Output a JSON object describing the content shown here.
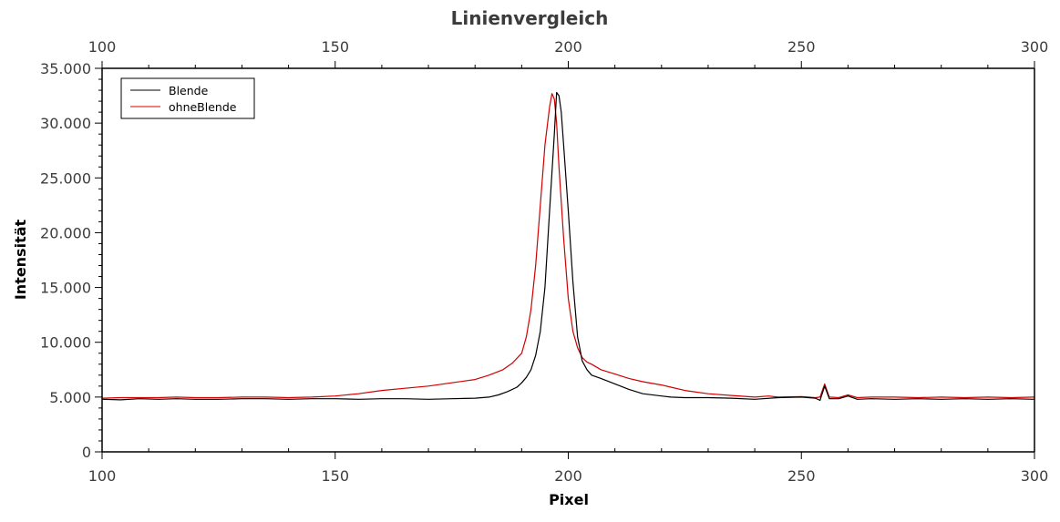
{
  "chart_data": {
    "type": "line",
    "title": "Linienvergleich",
    "xlabel": "Pixel",
    "ylabel": "Intensität",
    "xlim": [
      100,
      300
    ],
    "ylim": [
      0,
      35000
    ],
    "x_ticks": [
      100,
      150,
      200,
      250,
      300
    ],
    "x_tick_labels": [
      "100",
      "150",
      "200",
      "250",
      "300"
    ],
    "x_minor_step": 10,
    "y_ticks": [
      0,
      5000,
      10000,
      15000,
      20000,
      25000,
      30000,
      35000
    ],
    "y_tick_labels": [
      "0",
      "5.000",
      "10.000",
      "15.000",
      "20.000",
      "25.000",
      "30.000",
      "35.000"
    ],
    "y_minor_step": 1000,
    "top_axis_mirrored": true,
    "grid": false,
    "legend_position": "upper-left",
    "series": [
      {
        "name": "Blende",
        "color": "#000000",
        "x": [
          100,
          104,
          108,
          112,
          116,
          120,
          125,
          130,
          135,
          140,
          145,
          150,
          155,
          160,
          165,
          170,
          175,
          180,
          183,
          185,
          187,
          189,
          190,
          191,
          192,
          193,
          194,
          195,
          196,
          197,
          197.5,
          198,
          198.5,
          199,
          200,
          201,
          202,
          203,
          204,
          205,
          207,
          210,
          213,
          216,
          220,
          222,
          225,
          230,
          235,
          240,
          245,
          250,
          253,
          254,
          255,
          256,
          258,
          260,
          262,
          265,
          270,
          275,
          280,
          285,
          290,
          295,
          300
        ],
        "y": [
          4800,
          4750,
          4850,
          4800,
          4850,
          4800,
          4800,
          4850,
          4850,
          4800,
          4850,
          4850,
          4800,
          4850,
          4850,
          4800,
          4850,
          4900,
          5000,
          5200,
          5500,
          5900,
          6300,
          6800,
          7500,
          8800,
          11000,
          15000,
          22000,
          29000,
          32800,
          32500,
          31000,
          28000,
          22000,
          15500,
          10500,
          8300,
          7500,
          7000,
          6700,
          6200,
          5700,
          5300,
          5100,
          5000,
          4950,
          4950,
          4900,
          4800,
          4950,
          5000,
          4900,
          4700,
          6000,
          4850,
          4850,
          5100,
          4800,
          4850,
          4800,
          4850,
          4800,
          4850,
          4800,
          4850,
          4800
        ]
      },
      {
        "name": "ohneBlende",
        "color": "#d00000",
        "x": [
          100,
          104,
          108,
          112,
          116,
          120,
          125,
          130,
          135,
          140,
          145,
          150,
          155,
          160,
          165,
          170,
          175,
          180,
          183,
          186,
          188,
          190,
          191,
          192,
          193,
          194,
          195,
          196,
          196.5,
          197,
          197.5,
          198,
          199,
          200,
          201,
          202,
          203,
          204,
          205,
          207,
          210,
          213,
          216,
          220,
          222,
          225,
          230,
          235,
          240,
          243,
          245,
          250,
          253,
          254,
          255,
          256,
          258,
          260,
          262,
          265,
          270,
          275,
          280,
          285,
          290,
          295,
          300
        ],
        "y": [
          4900,
          4950,
          4950,
          4950,
          5000,
          4950,
          4950,
          5000,
          5000,
          4950,
          5000,
          5100,
          5300,
          5600,
          5800,
          6000,
          6300,
          6600,
          7000,
          7500,
          8100,
          9000,
          10500,
          13000,
          17000,
          22500,
          28000,
          31500,
          32700,
          32200,
          30000,
          26000,
          19500,
          14000,
          11000,
          9500,
          8600,
          8200,
          8000,
          7500,
          7100,
          6700,
          6400,
          6100,
          5900,
          5600,
          5300,
          5150,
          5000,
          5100,
          5000,
          5050,
          4950,
          5000,
          6200,
          5000,
          4950,
          5200,
          4950,
          5000,
          5000,
          4950,
          5000,
          4950,
          5000,
          4950,
          5000
        ]
      }
    ]
  }
}
